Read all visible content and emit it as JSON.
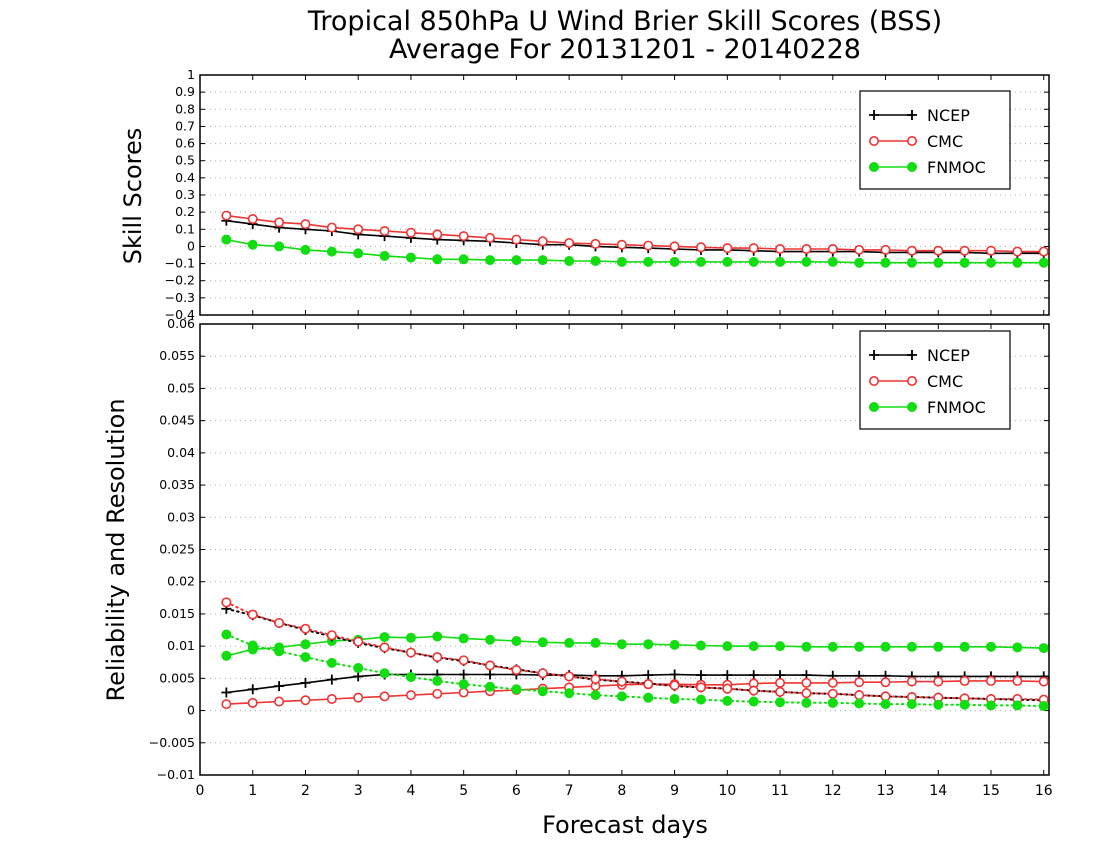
{
  "title_line1": "Tropical 850hPa U Wind Brier Skill Scores (BSS)",
  "title_line2": "Average For 20131201 - 20140228",
  "xlabel": "Forecast days",
  "colors": {
    "NCEP": "#000000",
    "CMC": "#ee3333",
    "FNMOC": "#11dd11"
  },
  "chart_data": [
    {
      "type": "line",
      "ylabel": "Skill Scores",
      "xlim": [
        0,
        16.1
      ],
      "ylim": [
        -0.4,
        1
      ],
      "yticks": [
        1,
        0.9,
        0.8,
        0.7,
        0.6,
        0.5,
        0.4,
        0.3,
        0.2,
        0.1,
        0,
        -0.1,
        -0.2,
        -0.3,
        -0.4
      ],
      "xticks": [
        0,
        1,
        2,
        3,
        4,
        5,
        6,
        7,
        8,
        9,
        10,
        11,
        12,
        13,
        14,
        15,
        16
      ],
      "grid": true,
      "legend": "top-right",
      "x": [
        0.5,
        1,
        1.5,
        2,
        2.5,
        3,
        3.5,
        4,
        4.5,
        5,
        5.5,
        6,
        6.5,
        7,
        7.5,
        8,
        8.5,
        9,
        9.5,
        10,
        10.5,
        11,
        11.5,
        12,
        12.5,
        13,
        13.5,
        14,
        14.5,
        15,
        15.5,
        16
      ],
      "series": [
        {
          "name": "NCEP",
          "marker": "plus",
          "style": "solid",
          "values": [
            0.15,
            0.13,
            0.11,
            0.1,
            0.09,
            0.07,
            0.06,
            0.05,
            0.04,
            0.035,
            0.03,
            0.02,
            0.01,
            0.01,
            0.0,
            -0.005,
            -0.01,
            -0.015,
            -0.02,
            -0.02,
            -0.025,
            -0.03,
            -0.03,
            -0.03,
            -0.03,
            -0.035,
            -0.035,
            -0.035,
            -0.035,
            -0.04,
            -0.04,
            -0.04
          ]
        },
        {
          "name": "CMC",
          "marker": "open-circle",
          "style": "solid",
          "values": [
            0.18,
            0.16,
            0.14,
            0.13,
            0.11,
            0.1,
            0.09,
            0.08,
            0.07,
            0.06,
            0.05,
            0.04,
            0.03,
            0.02,
            0.015,
            0.01,
            0.005,
            0.0,
            -0.005,
            -0.01,
            -0.01,
            -0.015,
            -0.015,
            -0.015,
            -0.02,
            -0.02,
            -0.025,
            -0.025,
            -0.025,
            -0.025,
            -0.03,
            -0.03
          ]
        },
        {
          "name": "FNMOC",
          "marker": "filled-circle",
          "style": "solid",
          "values": [
            0.04,
            0.01,
            0.0,
            -0.02,
            -0.03,
            -0.04,
            -0.055,
            -0.065,
            -0.075,
            -0.075,
            -0.08,
            -0.08,
            -0.08,
            -0.085,
            -0.085,
            -0.09,
            -0.09,
            -0.09,
            -0.09,
            -0.09,
            -0.09,
            -0.09,
            -0.09,
            -0.09,
            -0.095,
            -0.095,
            -0.095,
            -0.095,
            -0.095,
            -0.095,
            -0.095,
            -0.095
          ]
        }
      ]
    },
    {
      "type": "line",
      "ylabel": "Reliability and Resolution",
      "xlim": [
        0,
        16.1
      ],
      "ylim": [
        -0.01,
        0.06
      ],
      "yticks": [
        0.06,
        0.055,
        0.05,
        0.045,
        0.04,
        0.035,
        0.03,
        0.025,
        0.02,
        0.015,
        0.01,
        0.005,
        0,
        -0.005,
        -0.01
      ],
      "xticks": [
        0,
        1,
        2,
        3,
        4,
        5,
        6,
        7,
        8,
        9,
        10,
        11,
        12,
        13,
        14,
        15,
        16
      ],
      "grid": true,
      "legend": "top-right",
      "x": [
        0.5,
        1,
        1.5,
        2,
        2.5,
        3,
        3.5,
        4,
        4.5,
        5,
        5.5,
        6,
        6.5,
        7,
        7.5,
        8,
        8.5,
        9,
        9.5,
        10,
        10.5,
        11,
        11.5,
        12,
        12.5,
        13,
        13.5,
        14,
        14.5,
        15,
        15.5,
        16
      ],
      "series": [
        {
          "name": "NCEP",
          "legend": true,
          "marker": "plus",
          "style": "solid",
          "values": [
            0.0028,
            0.0033,
            0.0038,
            0.0043,
            0.0048,
            0.0053,
            0.0056,
            0.0056,
            0.0056,
            0.0056,
            0.0056,
            0.0056,
            0.0055,
            0.0055,
            0.0054,
            0.0054,
            0.0055,
            0.0056,
            0.0055,
            0.0055,
            0.0055,
            0.0055,
            0.0055,
            0.0054,
            0.0054,
            0.0054,
            0.0053,
            0.0053,
            0.0053,
            0.0053,
            0.0053,
            0.0053
          ]
        },
        {
          "name": "CMC",
          "legend": true,
          "marker": "open-circle",
          "style": "solid",
          "values": [
            0.001,
            0.0012,
            0.0014,
            0.0016,
            0.0018,
            0.002,
            0.0022,
            0.0024,
            0.0026,
            0.0028,
            0.003,
            0.0032,
            0.0034,
            0.0036,
            0.0038,
            0.004,
            0.0041,
            0.0041,
            0.004,
            0.004,
            0.0042,
            0.0043,
            0.0043,
            0.0043,
            0.0044,
            0.0044,
            0.0045,
            0.0045,
            0.0046,
            0.0046,
            0.0046,
            0.0045
          ]
        },
        {
          "name": "FNMOC",
          "legend": true,
          "marker": "filled-circle",
          "style": "solid",
          "values": [
            0.0085,
            0.0095,
            0.0098,
            0.0103,
            0.0108,
            0.011,
            0.0114,
            0.0113,
            0.0115,
            0.0112,
            0.011,
            0.0108,
            0.0106,
            0.0105,
            0.0105,
            0.0103,
            0.0103,
            0.0102,
            0.0101,
            0.01,
            0.01,
            0.01,
            0.0099,
            0.0099,
            0.0099,
            0.0099,
            0.0099,
            0.0099,
            0.0099,
            0.0099,
            0.0098,
            0.0097
          ]
        },
        {
          "name": "NCEP",
          "legend": false,
          "marker": "plus",
          "style": "dotted",
          "values": [
            0.0158,
            0.0148,
            0.0136,
            0.0125,
            0.0115,
            0.0105,
            0.0097,
            0.009,
            0.0082,
            0.0077,
            0.007,
            0.0064,
            0.0058,
            0.0053,
            0.0048,
            0.0045,
            0.0042,
            0.0038,
            0.0036,
            0.0034,
            0.0031,
            0.0029,
            0.0027,
            0.0026,
            0.0024,
            0.0022,
            0.0021,
            0.002,
            0.0019,
            0.0018,
            0.0017,
            0.0016
          ]
        },
        {
          "name": "CMC",
          "legend": false,
          "marker": "open-circle",
          "style": "dotted",
          "values": [
            0.0168,
            0.0149,
            0.0136,
            0.0127,
            0.0117,
            0.0107,
            0.0098,
            0.009,
            0.0083,
            0.0078,
            0.007,
            0.0063,
            0.0058,
            0.0053,
            0.0049,
            0.0045,
            0.0041,
            0.0039,
            0.0036,
            0.0034,
            0.0031,
            0.0029,
            0.0027,
            0.0026,
            0.0024,
            0.0022,
            0.0021,
            0.002,
            0.0019,
            0.0018,
            0.0018,
            0.0017
          ]
        },
        {
          "name": "FNMOC",
          "legend": false,
          "marker": "filled-circle",
          "style": "dotted",
          "values": [
            0.0118,
            0.0101,
            0.0092,
            0.0083,
            0.0074,
            0.0066,
            0.0058,
            0.0052,
            0.0046,
            0.0041,
            0.0037,
            0.0033,
            0.003,
            0.0027,
            0.0024,
            0.0022,
            0.002,
            0.0018,
            0.0017,
            0.0015,
            0.0014,
            0.0013,
            0.0012,
            0.0012,
            0.0011,
            0.001,
            0.001,
            0.0009,
            0.0009,
            0.0008,
            0.0008,
            0.0007
          ]
        }
      ]
    }
  ]
}
